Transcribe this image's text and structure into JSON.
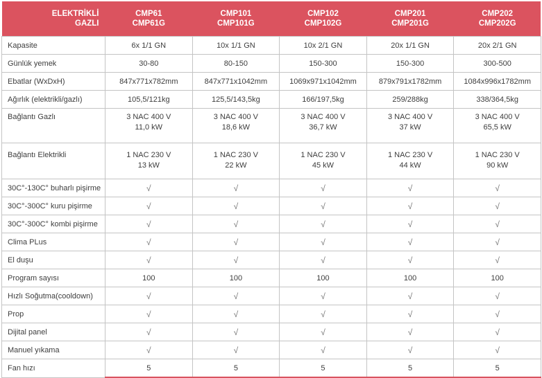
{
  "colors": {
    "header_bg": "#db535f",
    "header_text": "#ffffff",
    "grid_border": "#c4c4c4",
    "body_text": "#3d3d3d",
    "check_text": "#6e6e6e",
    "accent_underline": "#d9535f"
  },
  "header": {
    "label": [
      "ELEKTRİKLİ",
      "GAZLI"
    ],
    "columns": [
      [
        "CMP61",
        "CMP61G"
      ],
      [
        "CMP101",
        "CMP101G"
      ],
      [
        "CMP102",
        "CMP102G"
      ],
      [
        "CMP201",
        "CMP201G"
      ],
      [
        "CMP202",
        "CMP202G"
      ]
    ]
  },
  "check_symbol": "√",
  "rows": [
    {
      "label": "Kapasite",
      "values": [
        "6x 1/1 GN",
        "10x 1/1 GN",
        "10x 2/1 GN",
        "20x 1/1 GN",
        "20x 2/1 GN"
      ]
    },
    {
      "label": "Günlük yemek",
      "values": [
        "30-80",
        "80-150",
        "150-300",
        "150-300",
        "300-500"
      ]
    },
    {
      "label": "Ebatlar (WxDxH)",
      "values": [
        "847x771x782mm",
        "847x771x1042mm",
        "1069x971x1042mm",
        "879x791x1782mm",
        "1084x996x1782mm"
      ]
    },
    {
      "label": "Ağırlık (elektrikli/gazlı)",
      "values": [
        "105,5/121kg",
        "125,5/143,5kg",
        "166/197,5kg",
        "259/288kg",
        "338/364,5kg"
      ]
    },
    {
      "label": "Bağlantı Gazlı",
      "tall": true,
      "values": [
        [
          "3 NAC 400 V",
          "11,0 kW"
        ],
        [
          "3 NAC 400 V",
          "18,6 kW"
        ],
        [
          "3 NAC 400 V",
          "36,7 kW"
        ],
        [
          "3 NAC 400 V",
          "37 kW"
        ],
        [
          "3 NAC 400 V",
          "65,5 kW"
        ]
      ]
    },
    {
      "label": "Bağlantı Elektrikli",
      "tall": true,
      "values": [
        [
          "1 NAC 230 V",
          "13 kW"
        ],
        [
          "1 NAC 230 V",
          "22 kW"
        ],
        [
          "1 NAC 230 V",
          "45 kW"
        ],
        [
          "1 NAC 230 V",
          "44 kW"
        ],
        [
          "1 NAC 230 V",
          "90 kW"
        ]
      ]
    },
    {
      "label": "30C°-130C° buharlı pişirme",
      "check": true,
      "values": [
        "√",
        "√",
        "√",
        "√",
        "√"
      ]
    },
    {
      "label": "30C°-300C° kuru pişirme",
      "check": true,
      "values": [
        "√",
        "√",
        "√",
        "√",
        "√"
      ]
    },
    {
      "label": "30C°-300C° kombi pişirme",
      "check": true,
      "values": [
        "√",
        "√",
        "√",
        "√",
        "√"
      ]
    },
    {
      "label": "Clima PLus",
      "check": true,
      "values": [
        "√",
        "√",
        "√",
        "√",
        "√"
      ]
    },
    {
      "label": "El duşu",
      "check": true,
      "values": [
        "√",
        "√",
        "√",
        "√",
        "√"
      ]
    },
    {
      "label": "Program sayısı",
      "values": [
        "100",
        "100",
        "100",
        "100",
        "100"
      ]
    },
    {
      "label": "Hızlı Soğutma(cooldown)",
      "check": true,
      "values": [
        "√",
        "√",
        "√",
        "√",
        "√"
      ]
    },
    {
      "label": "Prop",
      "check": true,
      "values": [
        "√",
        "√",
        "√",
        "√",
        "√"
      ]
    },
    {
      "label": "Dijital panel",
      "check": true,
      "values": [
        "√",
        "√",
        "√",
        "√",
        "√"
      ]
    },
    {
      "label": "Manuel yıkama",
      "check": true,
      "values": [
        "√",
        "√",
        "√",
        "√",
        "√"
      ]
    },
    {
      "label": "Fan hızı",
      "values": [
        "5",
        "5",
        "5",
        "5",
        "5"
      ]
    }
  ]
}
